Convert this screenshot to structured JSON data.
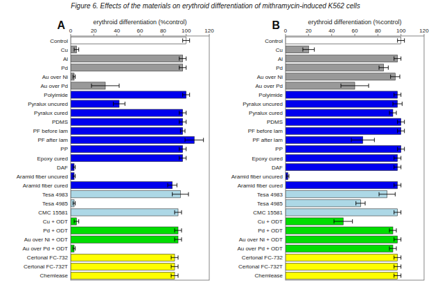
{
  "chart_data": [
    {
      "type": "bar",
      "orientation": "horizontal",
      "title": "Figure 6. Effects of the materials on erythroid differentiation of mithramycin-induced K562 cells",
      "annotations": [
        "A"
      ],
      "xlabel": "erythroid differentiation (%control)",
      "xlim": [
        0,
        120
      ],
      "xticks": [
        0,
        20,
        40,
        60,
        80,
        100,
        120
      ],
      "grid": false,
      "categories": [
        "Control",
        "Cu",
        "Al",
        "Pd",
        "Au over Ni",
        "Au over Pd",
        "Polyimide",
        "Pyralux uncured",
        "Pyralux cured",
        "PDMS",
        "PF before lam",
        "PF after lam",
        "PP",
        "Epoxy cured",
        "DAF",
        "Aramid fiber uncured",
        "Aramid fiber cured",
        "Tesa 4983",
        "Tesa 4985",
        "CMC 15581",
        "Cu + ODT",
        "Pd + ODT",
        "Au over Ni + ODT",
        "Au over Pd + ODT",
        "Certonal FC-732",
        "Certonal FC-732T",
        "Chemlease"
      ],
      "values": [
        100,
        5,
        97,
        97,
        3,
        30,
        100,
        42,
        97,
        97,
        97,
        107,
        97,
        97,
        3,
        3,
        88,
        95,
        3,
        93,
        5,
        93,
        93,
        3,
        90,
        90,
        90
      ],
      "errors": [
        3,
        2,
        3,
        3,
        1,
        12,
        3,
        5,
        3,
        3,
        2,
        8,
        3,
        3,
        1,
        1,
        4,
        7,
        1,
        3,
        2,
        3,
        3,
        1,
        3,
        3,
        3
      ],
      "colors": [
        "#ffffff",
        "#999999",
        "#999999",
        "#999999",
        "#999999",
        "#999999",
        "#0000ee",
        "#0000ee",
        "#0000ee",
        "#0000ee",
        "#0000ee",
        "#0000ee",
        "#0000ee",
        "#0000ee",
        "#0000ee",
        "#0000ee",
        "#0000ee",
        "#add8e6",
        "#add8e6",
        "#add8e6",
        "#00dd00",
        "#00dd00",
        "#00dd00",
        "#00dd00",
        "#ffff00",
        "#ffff00",
        "#ffff00"
      ]
    },
    {
      "type": "bar",
      "orientation": "horizontal",
      "annotations": [
        "B"
      ],
      "xlabel": "erythroid differentiation (%control)",
      "xlim": [
        0,
        120
      ],
      "xticks": [
        0,
        20,
        40,
        60,
        80,
        100,
        120
      ],
      "grid": false,
      "categories": [
        "Control",
        "Cu",
        "Al",
        "Pd",
        "Au over Ni",
        "Au over Pd",
        "Polyimide",
        "Pyralux uncured",
        "Pyralux cured",
        "PDMS",
        "PF before lam",
        "PF after lam",
        "PP",
        "Epoxy cured",
        "DAF",
        "Aramid fiber uncured",
        "Aramid fiber cured",
        "Tesa 4983",
        "Tesa 4985",
        "CMC 15581",
        "Cu + ODT",
        "Pd + ODT",
        "Au over Ni + ODT",
        "Au over Pd + ODT",
        "Certonal FC-732",
        "Certonal FC-732T",
        "Chemlease"
      ],
      "values": [
        100,
        20,
        97,
        85,
        95,
        60,
        97,
        97,
        93,
        100,
        100,
        67,
        100,
        97,
        97,
        2,
        97,
        88,
        65,
        97,
        50,
        93,
        97,
        93,
        97,
        97,
        97
      ],
      "errors": [
        3,
        5,
        3,
        4,
        4,
        12,
        3,
        4,
        3,
        3,
        3,
        10,
        3,
        3,
        3,
        1,
        3,
        7,
        4,
        3,
        8,
        3,
        3,
        3,
        3,
        3,
        3
      ],
      "colors": [
        "#ffffff",
        "#999999",
        "#999999",
        "#999999",
        "#999999",
        "#999999",
        "#0000ee",
        "#0000ee",
        "#0000ee",
        "#0000ee",
        "#0000ee",
        "#0000ee",
        "#0000ee",
        "#0000ee",
        "#0000ee",
        "#0000ee",
        "#0000ee",
        "#add8e6",
        "#add8e6",
        "#add8e6",
        "#00dd00",
        "#00dd00",
        "#00dd00",
        "#00dd00",
        "#ffff00",
        "#ffff00",
        "#ffff00"
      ]
    }
  ]
}
